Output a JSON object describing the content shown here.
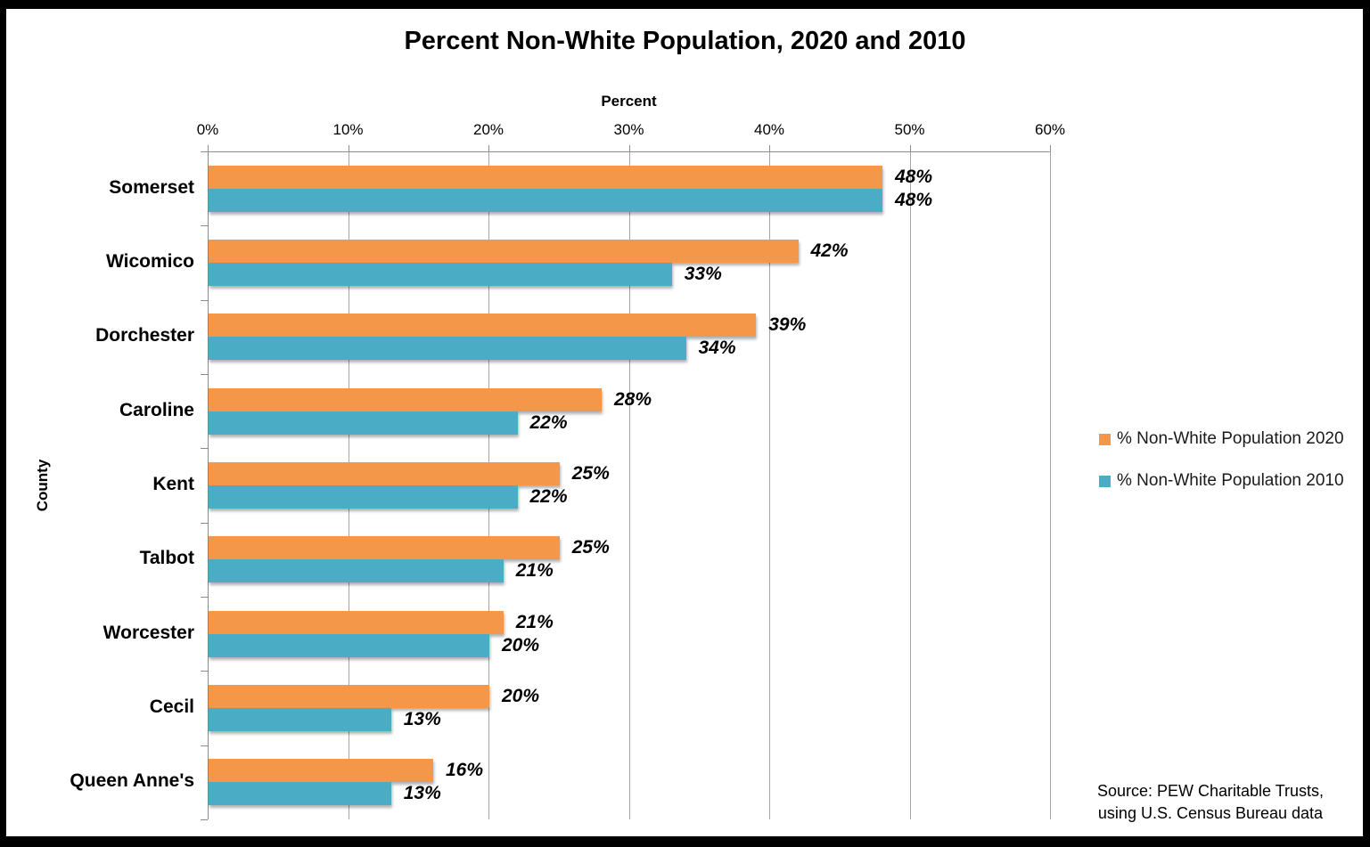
{
  "title": "Percent Non-White Population, 2020 and 2010",
  "axes": {
    "x_title": "Percent",
    "y_title": "County"
  },
  "source": {
    "line1": "Source: PEW Charitable Trusts,",
    "line2": "using U.S. Census Bureau data"
  },
  "colors": {
    "series_2020": "#F59748",
    "series_2010": "#4BACC6",
    "gridline": "#A6A6A6",
    "axis": "#8C8C8C"
  },
  "chart_data": {
    "type": "bar",
    "orientation": "horizontal",
    "title": "Percent Non-White Population, 2020 and 2010",
    "xlabel": "Percent",
    "ylabel": "County",
    "xlim": [
      0,
      60
    ],
    "x_tick_step": 10,
    "x_ticks": [
      "0%",
      "10%",
      "20%",
      "30%",
      "40%",
      "50%",
      "60%"
    ],
    "grid": true,
    "legend_position": "right",
    "data_label_suffix": "%",
    "categories": [
      "Somerset",
      "Wicomico",
      "Dorchester",
      "Caroline",
      "Kent",
      "Talbot",
      "Worcester",
      "Cecil",
      "Queen Anne's"
    ],
    "series": [
      {
        "name": "% Non-White Population 2020",
        "color": "#F59748",
        "values": [
          48,
          42,
          39,
          28,
          25,
          25,
          21,
          20,
          16
        ]
      },
      {
        "name": "% Non-White Population 2010",
        "color": "#4BACC6",
        "values": [
          48,
          33,
          34,
          22,
          22,
          21,
          20,
          13,
          13
        ]
      }
    ]
  }
}
